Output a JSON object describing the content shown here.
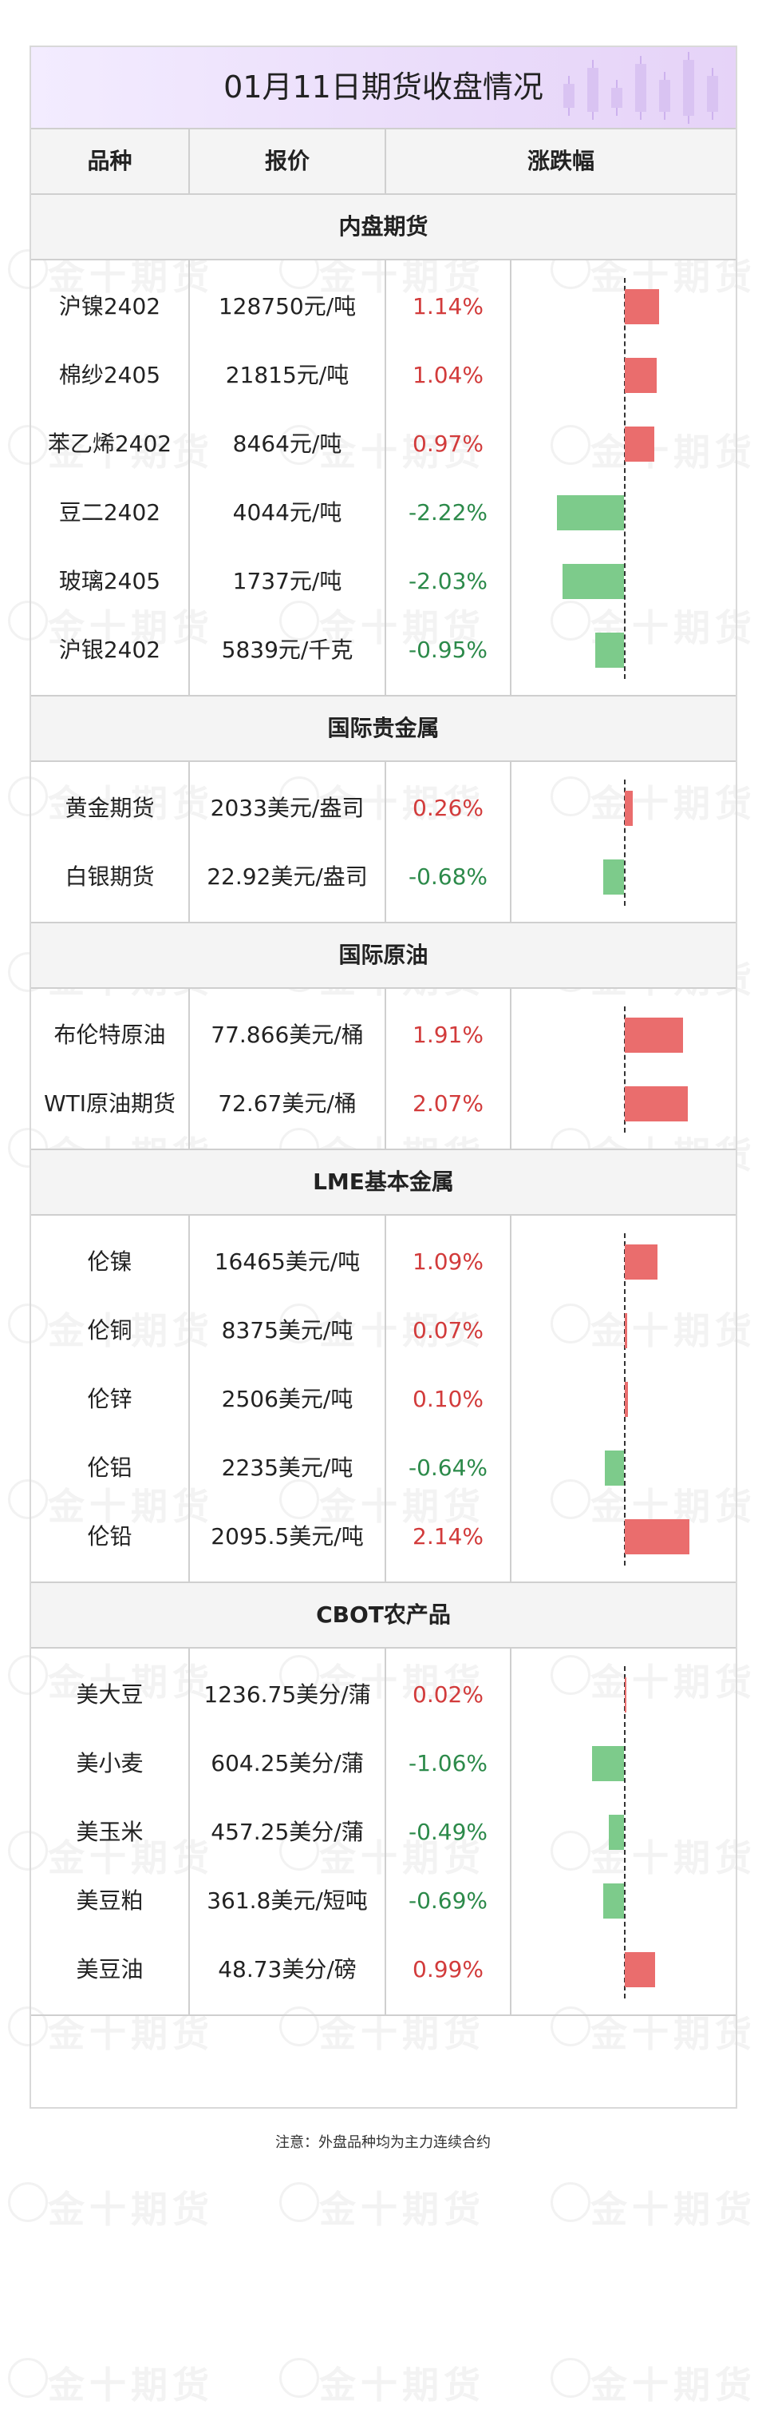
{
  "title": "01月11日期货收盘情况",
  "watermark": "金十期货",
  "columns": {
    "variety": "品种",
    "price": "报价",
    "change": "涨跌幅"
  },
  "colors": {
    "up": "#d23b3b",
    "down": "#2c8a4a",
    "up_bar": "#ea6d6d",
    "down_bar": "#7dcb8b",
    "title_bg": "#eadcfa"
  },
  "footnote": "注意：外盘品种均为主力连续合约",
  "chart_data": {
    "type": "bar",
    "orientation": "horizontal",
    "unit": "%",
    "sections": [
      {
        "name": "内盘期货",
        "rows": [
          {
            "name": "沪镍2402",
            "price": "128750元/吨",
            "change_text": "1.14%",
            "value": 1.14
          },
          {
            "name": "棉纱2405",
            "price": "21815元/吨",
            "change_text": "1.04%",
            "value": 1.04
          },
          {
            "name": "苯乙烯2402",
            "price": "8464元/吨",
            "change_text": "0.97%",
            "value": 0.97
          },
          {
            "name": "豆二2402",
            "price": "4044元/吨",
            "change_text": "-2.22%",
            "value": -2.22
          },
          {
            "name": "玻璃2405",
            "price": "1737元/吨",
            "change_text": "-2.03%",
            "value": -2.03
          },
          {
            "name": "沪银2402",
            "price": "5839元/千克",
            "change_text": "-0.95%",
            "value": -0.95
          }
        ]
      },
      {
        "name": "国际贵金属",
        "rows": [
          {
            "name": "黄金期货",
            "price": "2033美元/盎司",
            "change_text": "0.26%",
            "value": 0.26
          },
          {
            "name": "白银期货",
            "price": "22.92美元/盎司",
            "change_text": "-0.68%",
            "value": -0.68
          }
        ]
      },
      {
        "name": "国际原油",
        "rows": [
          {
            "name": "布伦特原油",
            "price": "77.866美元/桶",
            "change_text": "1.91%",
            "value": 1.91
          },
          {
            "name": "WTI原油期货",
            "price": "72.67美元/桶",
            "change_text": "2.07%",
            "value": 2.07
          }
        ]
      },
      {
        "name": "LME基本金属",
        "rows": [
          {
            "name": "伦镍",
            "price": "16465美元/吨",
            "change_text": "1.09%",
            "value": 1.09
          },
          {
            "name": "伦铜",
            "price": "8375美元/吨",
            "change_text": "0.07%",
            "value": 0.07
          },
          {
            "name": "伦锌",
            "price": "2506美元/吨",
            "change_text": "0.10%",
            "value": 0.1
          },
          {
            "name": "伦铝",
            "price": "2235美元/吨",
            "change_text": "-0.64%",
            "value": -0.64
          },
          {
            "name": "伦铅",
            "price": "2095.5美元/吨",
            "change_text": "2.14%",
            "value": 2.14
          }
        ]
      },
      {
        "name": "CBOT农产品",
        "rows": [
          {
            "name": "美大豆",
            "price": "1236.75美分/蒲",
            "change_text": "0.02%",
            "value": 0.02
          },
          {
            "name": "美小麦",
            "price": "604.25美分/蒲",
            "change_text": "-1.06%",
            "value": -1.06
          },
          {
            "name": "美玉米",
            "price": "457.25美分/蒲",
            "change_text": "-0.49%",
            "value": -0.49
          },
          {
            "name": "美豆粕",
            "price": "361.8美元/短吨",
            "change_text": "-0.69%",
            "value": -0.69
          },
          {
            "name": "美豆油",
            "price": "48.73美分/磅",
            "change_text": "0.99%",
            "value": 0.99
          }
        ]
      }
    ]
  }
}
